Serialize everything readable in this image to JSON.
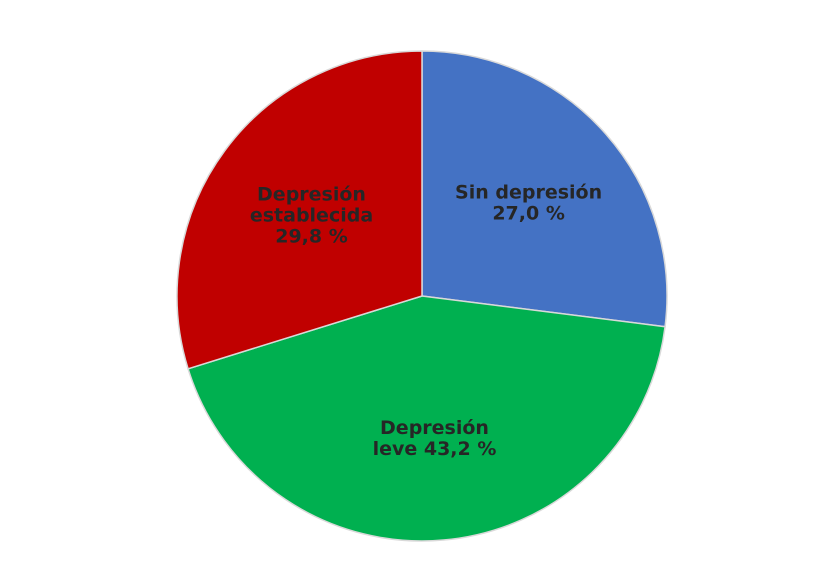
{
  "chart_data": {
    "type": "pie",
    "slices": [
      {
        "label_lines": [
          "Sin depresión",
          "27,0 %"
        ],
        "category": "Sin depresión",
        "value": 27.0,
        "color": "#4472C4"
      },
      {
        "label_lines": [
          "Depresión",
          "leve 43,2 %"
        ],
        "category": "Depresión leve",
        "value": 43.2,
        "color": "#00B050"
      },
      {
        "label_lines": [
          "Depresión",
          "establecida",
          "29,8 %"
        ],
        "category": "Depresión establecida",
        "value": 29.8,
        "color": "#C00000"
      }
    ],
    "start_angle_deg": 0,
    "direction": "clockwise",
    "legend": "none",
    "labels": "inside",
    "slice_border_color": "#D9D9D9"
  }
}
